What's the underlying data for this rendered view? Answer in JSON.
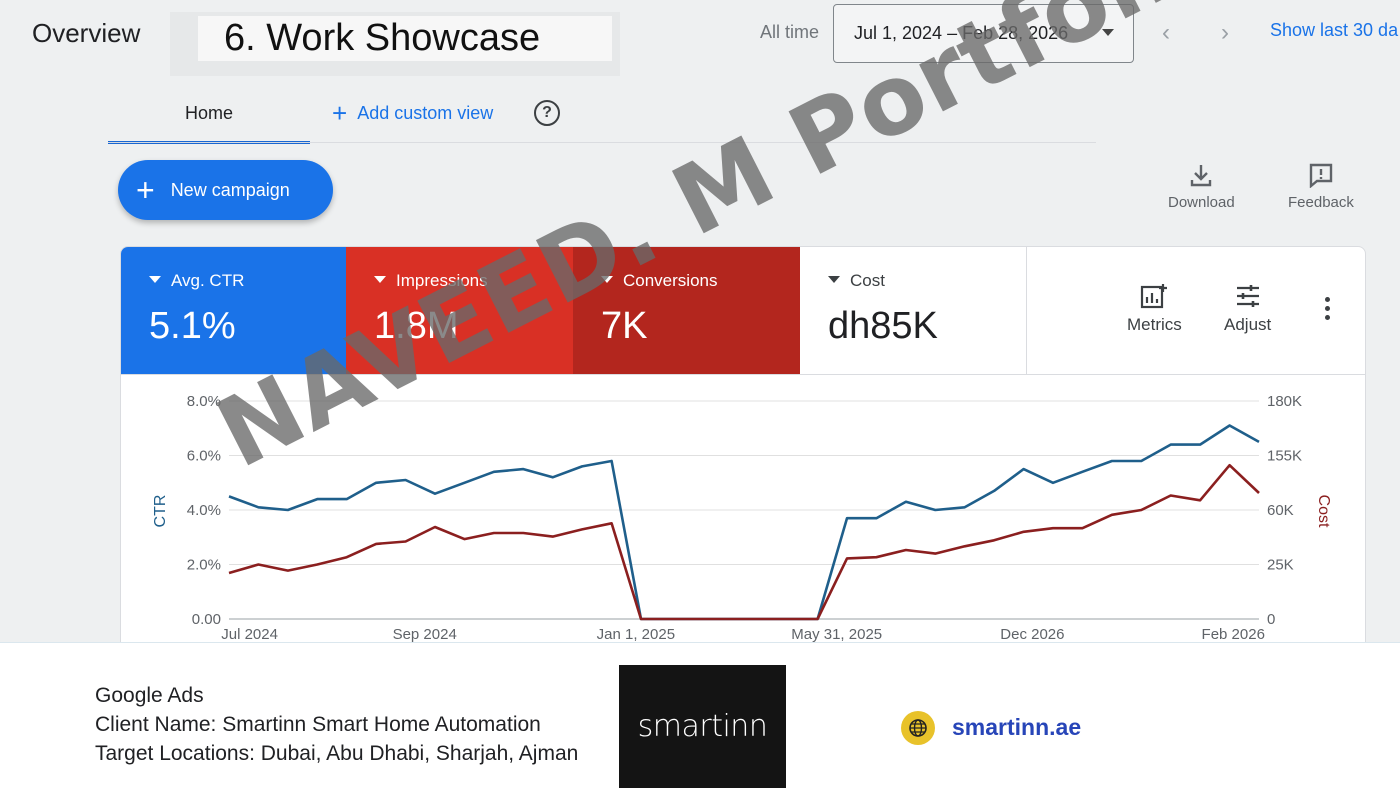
{
  "header": {
    "overview_label": "Overview",
    "showcase_label": "6. Work Showcase",
    "all_time_label": "All time",
    "date_range": "Jul 1, 2024 – Feb 28, 2026",
    "prev_arrow": "‹",
    "next_arrow": "›",
    "show_last_label": "Show last 30 da"
  },
  "tabs": {
    "home_label": "Home",
    "add_custom_view_label": "Add custom view",
    "help_icon": "question-circle-icon"
  },
  "actions": {
    "new_campaign_label": "New campaign",
    "download_label": "Download",
    "feedback_label": "Feedback"
  },
  "metrics": [
    {
      "label": "Avg. CTR",
      "value": "5.1%",
      "color": "#1a73e8"
    },
    {
      "label": "Impressions",
      "value": "1.8M",
      "color": "#d93025"
    },
    {
      "label": "Conversions",
      "value": "7K",
      "color": "#b3261e"
    },
    {
      "label": "Cost",
      "value": "dh85K",
      "color": "#ffffff"
    }
  ],
  "card_toolbar": {
    "metrics_label": "Metrics",
    "adjust_label": "Adjust"
  },
  "watermark": "NAVEED. M Portfolio",
  "chart_data": {
    "type": "line",
    "xlabel": "",
    "ylabel": "CTR",
    "y2label": "Cost",
    "x_tick_labels": [
      "Jul 2024",
      "Sep 2024",
      "Jan 1, 2025",
      "May 31, 2025",
      "Dec 2026",
      "Feb 2026"
    ],
    "y_ticks": [
      "0.00",
      "2.0%",
      "4.0%",
      "6.0%",
      "8.0%"
    ],
    "y2_ticks": [
      "0",
      "25K",
      "60K",
      "155K",
      "180K"
    ],
    "ylim": [
      0,
      8
    ],
    "y2lim": [
      0,
      180
    ],
    "grid": true,
    "x_index_range": [
      0,
      35
    ],
    "series": [
      {
        "name": "CTR",
        "axis": "left",
        "color": "#1f5f8b",
        "x": [
          0,
          1,
          2,
          3,
          4,
          5,
          6,
          7,
          8,
          9,
          10,
          11,
          12,
          13,
          14,
          15,
          16,
          17,
          18,
          19,
          20,
          21,
          22,
          23,
          24,
          25,
          26,
          27,
          28,
          29,
          30,
          31,
          32,
          33,
          34,
          35
        ],
        "values": [
          4.5,
          4.1,
          4.0,
          4.4,
          4.4,
          5.0,
          5.1,
          4.6,
          5.0,
          5.4,
          5.5,
          5.2,
          5.6,
          5.8,
          0,
          0,
          0,
          0,
          0,
          0,
          0,
          3.7,
          3.7,
          4.3,
          4.0,
          4.1,
          4.7,
          5.5,
          5.0,
          5.4,
          5.8,
          5.8,
          6.4,
          6.4,
          7.1,
          6.5
        ]
      },
      {
        "name": "Cost",
        "axis": "right",
        "color": "#8b1f1f",
        "x": [
          0,
          1,
          2,
          3,
          4,
          5,
          6,
          7,
          8,
          9,
          10,
          11,
          12,
          13,
          14,
          15,
          16,
          17,
          18,
          19,
          20,
          21,
          22,
          23,
          24,
          25,
          26,
          27,
          28,
          29,
          30,
          31,
          32,
          33,
          34,
          35
        ],
        "values": [
          38,
          45,
          40,
          45,
          51,
          62,
          64,
          76,
          66,
          71,
          71,
          68,
          74,
          79,
          0,
          0,
          0,
          0,
          0,
          0,
          0,
          50,
          51,
          57,
          54,
          60,
          65,
          72,
          75,
          75,
          86,
          90,
          102,
          98,
          127,
          104
        ]
      }
    ]
  },
  "footer": {
    "line1": "Google Ads",
    "line2": "Client Name: Smartinn Smart Home Automation",
    "line3": "Target Locations: Dubai, Abu Dhabi, Sharjah, Ajman",
    "logo_text": "smartinn",
    "website": "smartinn.ae",
    "globe_icon": "globe-icon"
  }
}
